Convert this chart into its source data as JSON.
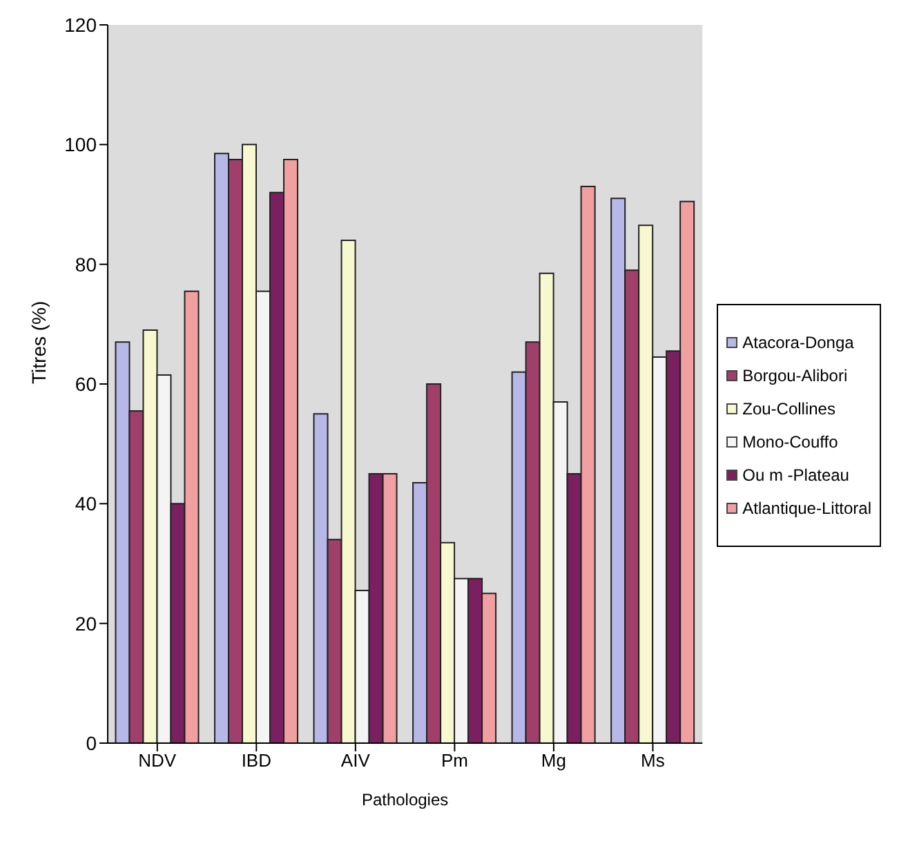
{
  "chart_data": {
    "type": "bar",
    "xlabel": "Pathologies",
    "ylabel": "Titres (%)",
    "categories": [
      "NDV",
      "IBD",
      "AIV",
      "Pm",
      "Mg",
      "Ms"
    ],
    "series": [
      {
        "name": "Atacora-Donga",
        "color": "#b8b8e8",
        "values": [
          67,
          98.5,
          55,
          43.5,
          62,
          91
        ]
      },
      {
        "name": "Borgou-Alibori",
        "color": "#a0406a",
        "values": [
          55.5,
          97.5,
          34,
          60,
          67,
          79
        ]
      },
      {
        "name": "Zou-Collines",
        "color": "#f8f8d0",
        "values": [
          69,
          100,
          84,
          33.5,
          78.5,
          86.5
        ]
      },
      {
        "name": "Mono-Couffo",
        "color": "#f4f4f4",
        "values": [
          61.5,
          75.5,
          25.5,
          27.5,
          57,
          64.5
        ]
      },
      {
        "name": "Ou m -Plateau",
        "color": "#7a2060",
        "values": [
          40,
          92,
          45,
          27.5,
          45,
          65.5
        ]
      },
      {
        "name": "Atlantique-Littoral",
        "color": "#f0a0a0",
        "values": [
          75.5,
          97.5,
          45,
          25,
          93,
          90.5
        ]
      }
    ],
    "ylim": [
      0,
      120
    ],
    "yticks": [
      0,
      20,
      40,
      60,
      80,
      100,
      120
    ],
    "legend": "right"
  }
}
